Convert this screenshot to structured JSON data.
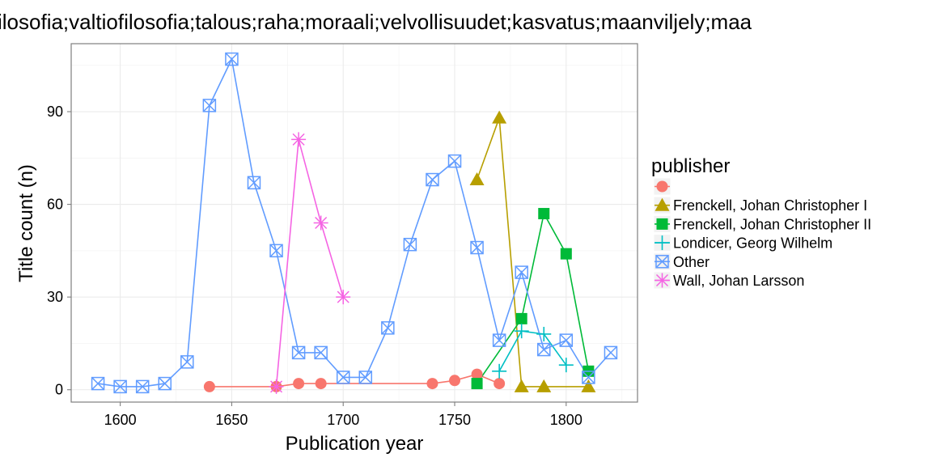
{
  "chart_data": {
    "type": "line",
    "title": "ilosofia;valtiofilosofia;talous;raha;moraali;velvollisuudet;kasvatus;maanviljely;maa",
    "xlabel": "Publication year",
    "ylabel": "Title count (n)",
    "xlim": [
      1578,
      1832
    ],
    "ylim": [
      -4,
      112
    ],
    "x_ticks": [
      1600,
      1650,
      1700,
      1750,
      1800
    ],
    "y_ticks": [
      0,
      30,
      60,
      90
    ],
    "grid": true,
    "legend": {
      "title": "publisher",
      "position": "right"
    },
    "series": [
      {
        "name": "",
        "color": "#F8766D",
        "marker": "circle",
        "points": [
          [
            1640,
            1
          ],
          [
            1670,
            1
          ],
          [
            1680,
            2
          ],
          [
            1690,
            2
          ],
          [
            1740,
            2
          ],
          [
            1750,
            3
          ],
          [
            1760,
            5
          ],
          [
            1770,
            2
          ]
        ]
      },
      {
        "name": "Frenckell, Johan Christopher I",
        "color": "#B79F00",
        "marker": "triangle",
        "points": [
          [
            1760,
            68
          ],
          [
            1770,
            88
          ],
          [
            1780,
            1
          ],
          [
            1790,
            1
          ],
          [
            1810,
            1
          ]
        ]
      },
      {
        "name": "Frenckell, Johan Christopher II",
        "color": "#00BA38",
        "marker": "square",
        "points": [
          [
            1760,
            2
          ],
          [
            1780,
            23
          ],
          [
            1790,
            57
          ],
          [
            1800,
            44
          ],
          [
            1810,
            6
          ]
        ]
      },
      {
        "name": "Londicer, Georg Wilhelm",
        "color": "#00BFC4",
        "marker": "plus",
        "points": [
          [
            1770,
            6
          ],
          [
            1780,
            19
          ],
          [
            1790,
            18
          ],
          [
            1800,
            8
          ]
        ]
      },
      {
        "name": "Other",
        "color": "#619CFF",
        "marker": "boxcross",
        "points": [
          [
            1590,
            2
          ],
          [
            1600,
            1
          ],
          [
            1610,
            1
          ],
          [
            1620,
            2
          ],
          [
            1630,
            9
          ],
          [
            1640,
            92
          ],
          [
            1650,
            107
          ],
          [
            1660,
            67
          ],
          [
            1670,
            45
          ],
          [
            1680,
            12
          ],
          [
            1690,
            12
          ],
          [
            1700,
            4
          ],
          [
            1710,
            4
          ],
          [
            1720,
            20
          ],
          [
            1730,
            47
          ],
          [
            1740,
            68
          ],
          [
            1750,
            74
          ],
          [
            1760,
            46
          ],
          [
            1770,
            16
          ],
          [
            1780,
            38
          ],
          [
            1790,
            13
          ],
          [
            1800,
            16
          ],
          [
            1810,
            4
          ],
          [
            1820,
            12
          ]
        ]
      },
      {
        "name": "Wall, Johan Larsson",
        "color": "#F564E3",
        "marker": "asterisk",
        "points": [
          [
            1670,
            1
          ],
          [
            1680,
            81
          ],
          [
            1690,
            54
          ],
          [
            1700,
            30
          ]
        ]
      }
    ]
  }
}
